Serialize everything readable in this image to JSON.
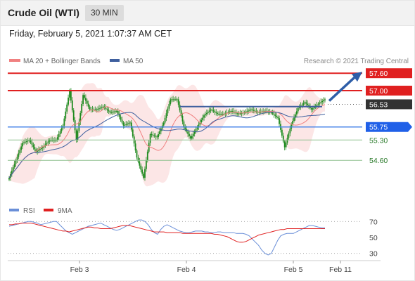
{
  "header": {
    "title": "Crude Oil (WTI)",
    "interval": "30 MIN"
  },
  "timestamp": "Friday, February 5, 2021 1:07:37 AM CET",
  "colors": {
    "candle": "#1f8a1f",
    "ma20": "#f08080",
    "bollinger_fill": "#fbdede",
    "ma50": "#3e5f9e",
    "resistance": "#e02020",
    "support_strong": "#4a86e8",
    "support": "#8fc08f",
    "rsi": "#6a8fd8",
    "rsi_ma": "#e02020",
    "arrow": "#2e5ea8",
    "pivot_label": "#2060e8",
    "last_price_label": "#333333"
  },
  "chart_data": [
    {
      "type": "candlestick",
      "legend": [
        {
          "name": "MA 20 + Bollinger Bands",
          "color": "#f08080"
        },
        {
          "name": "MA 50",
          "color": "#3e5f9e"
        }
      ],
      "credit": "Research © 2021 Trading Central",
      "ylim": [
        53.3,
        57.75
      ],
      "x_ticks": [
        "Feb 3",
        "Feb 4",
        "Feb 5",
        "Feb 11"
      ],
      "levels": [
        {
          "value": 57.6,
          "label": "57.60",
          "kind": "resistance",
          "style": "box"
        },
        {
          "value": 57.0,
          "label": "57.00",
          "kind": "resistance",
          "style": "box"
        },
        {
          "value": 56.53,
          "label": "56.53",
          "kind": "last",
          "style": "box"
        },
        {
          "value": 55.75,
          "label": "55.75",
          "kind": "pivot",
          "style": "tag"
        },
        {
          "value": 55.3,
          "label": "55.30",
          "kind": "support",
          "style": "text"
        },
        {
          "value": 54.6,
          "label": "54.60",
          "kind": "support",
          "style": "text"
        }
      ],
      "forecast_arrow": {
        "from": 56.6,
        "to": 57.6
      },
      "close": [
        54.0,
        54.12,
        54.24,
        54.36,
        54.48,
        54.6,
        54.72,
        54.84,
        54.96,
        55.08,
        55.2,
        55.22,
        55.24,
        55.26,
        55.28,
        55.3,
        55.22,
        55.14,
        55.06,
        54.98,
        54.9,
        54.93,
        54.96,
        54.99,
        55.02,
        55.05,
        55.1,
        55.15,
        55.2,
        55.25,
        55.3,
        55.3,
        55.3,
        55.3,
        55.3,
        55.3,
        55.4,
        55.5,
        55.6,
        55.7,
        55.8,
        56.04,
        56.28,
        56.52,
        56.76,
        57.0,
        56.66,
        56.32,
        55.98,
        55.64,
        55.3,
        55.61,
        55.92,
        56.23,
        56.54,
        56.85,
        56.75,
        56.65,
        56.55,
        56.45,
        56.35,
        56.35,
        56.35,
        56.35,
        56.35,
        56.35,
        56.37,
        56.39,
        56.41,
        56.43,
        56.45,
        56.41,
        56.37,
        56.33,
        56.29,
        56.25,
        56.26,
        56.27,
        56.28,
        56.29,
        56.3,
        56.2,
        56.1,
        56.0,
        55.9,
        55.8,
        55.82,
        55.84,
        55.86,
        55.88,
        55.9,
        55.66,
        55.42,
        55.18,
        54.94,
        54.7,
        54.56,
        54.42,
        54.28,
        54.14,
        54.0,
        54.3,
        54.6,
        54.9,
        55.2,
        55.5,
        55.48,
        55.46,
        55.44,
        55.42,
        55.4,
        55.5,
        55.6,
        55.7,
        55.8,
        55.9,
        56.06,
        56.22,
        56.38,
        56.54,
        56.7,
        56.7,
        56.7,
        56.7,
        56.7,
        56.7,
        56.51,
        56.32,
        56.13,
        55.94,
        55.75,
        55.67,
        55.59,
        55.51,
        55.43,
        55.35,
        55.43,
        55.51,
        55.59,
        55.67,
        55.75,
        55.83,
        55.91,
        55.99,
        56.07,
        56.15,
        56.19,
        56.23,
        56.27,
        56.31,
        56.35,
        56.32,
        56.29,
        56.26,
        56.23,
        56.2,
        56.2,
        56.2,
        56.2,
        56.2,
        56.2,
        56.22,
        56.24,
        56.26,
        56.28,
        56.3,
        56.28,
        56.26,
        56.24,
        56.22,
        56.2,
        56.21,
        56.22,
        56.23,
        56.24,
        56.25,
        56.27,
        56.29,
        56.31,
        56.33,
        56.35,
        56.33,
        56.31,
        56.29,
        56.27,
        56.25,
        56.26,
        56.27,
        56.28,
        56.29,
        56.3,
        56.29,
        56.28,
        56.27,
        56.26,
        56.25,
        56.21,
        56.17,
        56.13,
        56.09,
        56.05,
        55.85,
        55.65,
        55.45,
        55.25,
        55.05,
        55.21,
        55.37,
        55.53,
        55.69,
        55.85,
        55.96,
        56.07,
        56.18,
        56.29,
        56.4,
        56.44,
        56.48,
        56.52,
        56.56,
        56.6,
        56.55,
        56.5,
        56.45,
        56.4,
        56.35,
        56.39,
        56.43,
        56.47,
        56.51,
        56.55,
        56.58,
        56.61,
        56.64,
        56.67,
        56.7
      ],
      "rsi": {
        "name": "RSI",
        "ma_name": "9MA",
        "ticks": [
          70,
          50,
          30
        ],
        "ylim": [
          20,
          80
        ],
        "values": [
          64,
          65,
          66,
          67,
          68,
          69,
          70,
          70,
          69,
          68,
          66,
          67,
          68,
          69,
          70,
          70,
          66,
          62,
          58,
          56,
          54,
          56,
          58,
          60,
          62,
          64,
          65,
          66,
          67,
          68,
          66,
          64,
          62,
          60,
          59,
          60,
          62,
          64,
          66,
          68,
          70,
          72,
          72,
          70,
          66,
          60,
          56,
          54,
          60,
          64,
          66,
          64,
          62,
          60,
          58,
          57,
          56,
          56,
          57,
          58,
          58,
          58,
          57,
          57,
          56,
          56,
          57,
          57,
          56,
          56,
          56,
          56,
          55,
          55,
          55,
          54,
          52,
          48,
          44,
          40,
          34,
          30,
          28,
          30,
          38,
          46,
          52,
          54,
          55,
          55,
          55,
          57,
          59,
          61,
          63,
          65,
          65,
          64,
          63,
          62,
          62
        ],
        "ma": [
          66,
          66,
          67,
          67,
          68,
          68,
          68,
          68,
          67,
          66,
          65,
          64,
          63,
          62,
          61,
          60,
          59,
          58,
          58,
          57,
          58,
          59,
          60,
          61,
          62,
          63,
          63,
          62,
          62,
          61,
          61,
          61,
          61,
          62,
          63,
          64,
          65,
          65,
          65,
          64,
          63,
          62,
          61,
          60,
          59,
          58,
          57,
          57,
          57,
          57,
          56,
          56,
          56,
          56,
          56,
          55,
          55,
          55,
          55,
          55,
          55,
          55,
          55,
          55,
          55,
          54,
          54,
          53,
          52,
          51,
          49,
          47,
          45,
          44,
          44,
          45,
          47,
          49,
          51,
          53,
          54,
          55,
          56,
          57,
          58,
          59,
          60,
          60,
          61,
          61,
          61,
          61,
          61,
          61,
          61,
          61,
          61,
          61,
          61,
          61,
          61
        ]
      }
    }
  ]
}
